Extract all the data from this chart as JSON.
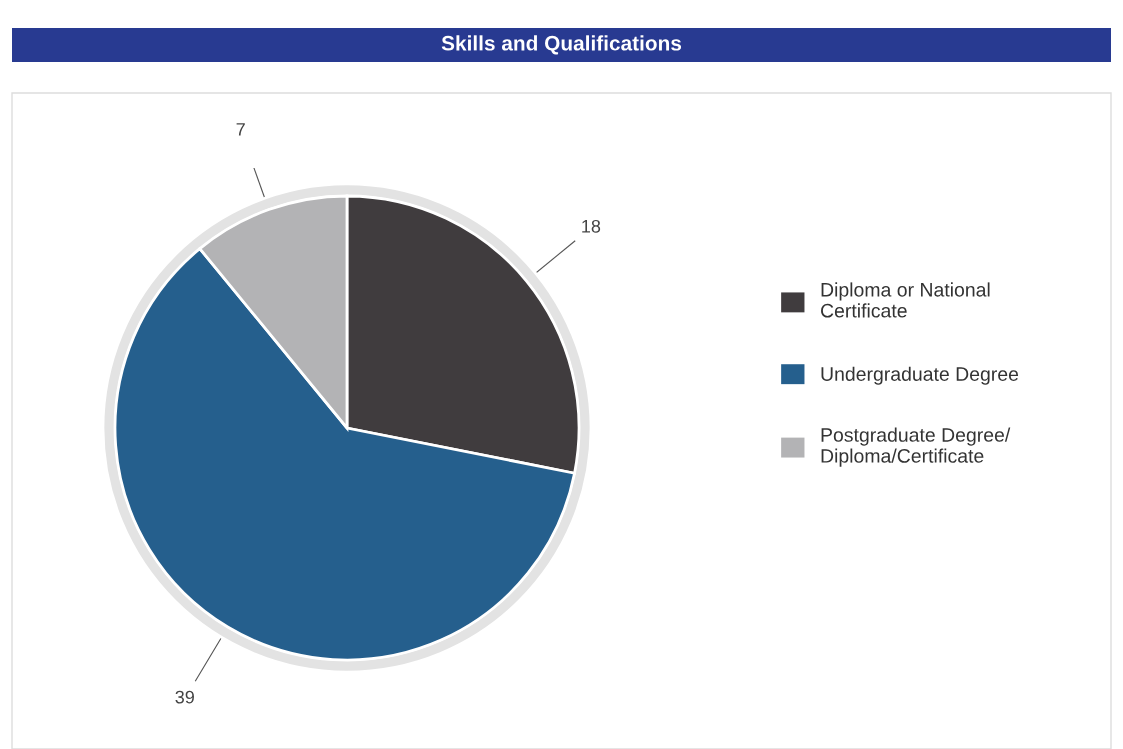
{
  "chart_data": {
    "type": "pie",
    "title": "Skills and Qualifications",
    "categories": [
      "Diploma or National Certificate",
      "Undergraduate Degree",
      "Postgraduate Degree/ Diploma/Certificate"
    ],
    "values": [
      18,
      39,
      7
    ],
    "colors": [
      "#403c3e",
      "#255f8d",
      "#b3b3b5"
    ],
    "data_labels": true,
    "legend": "right"
  }
}
